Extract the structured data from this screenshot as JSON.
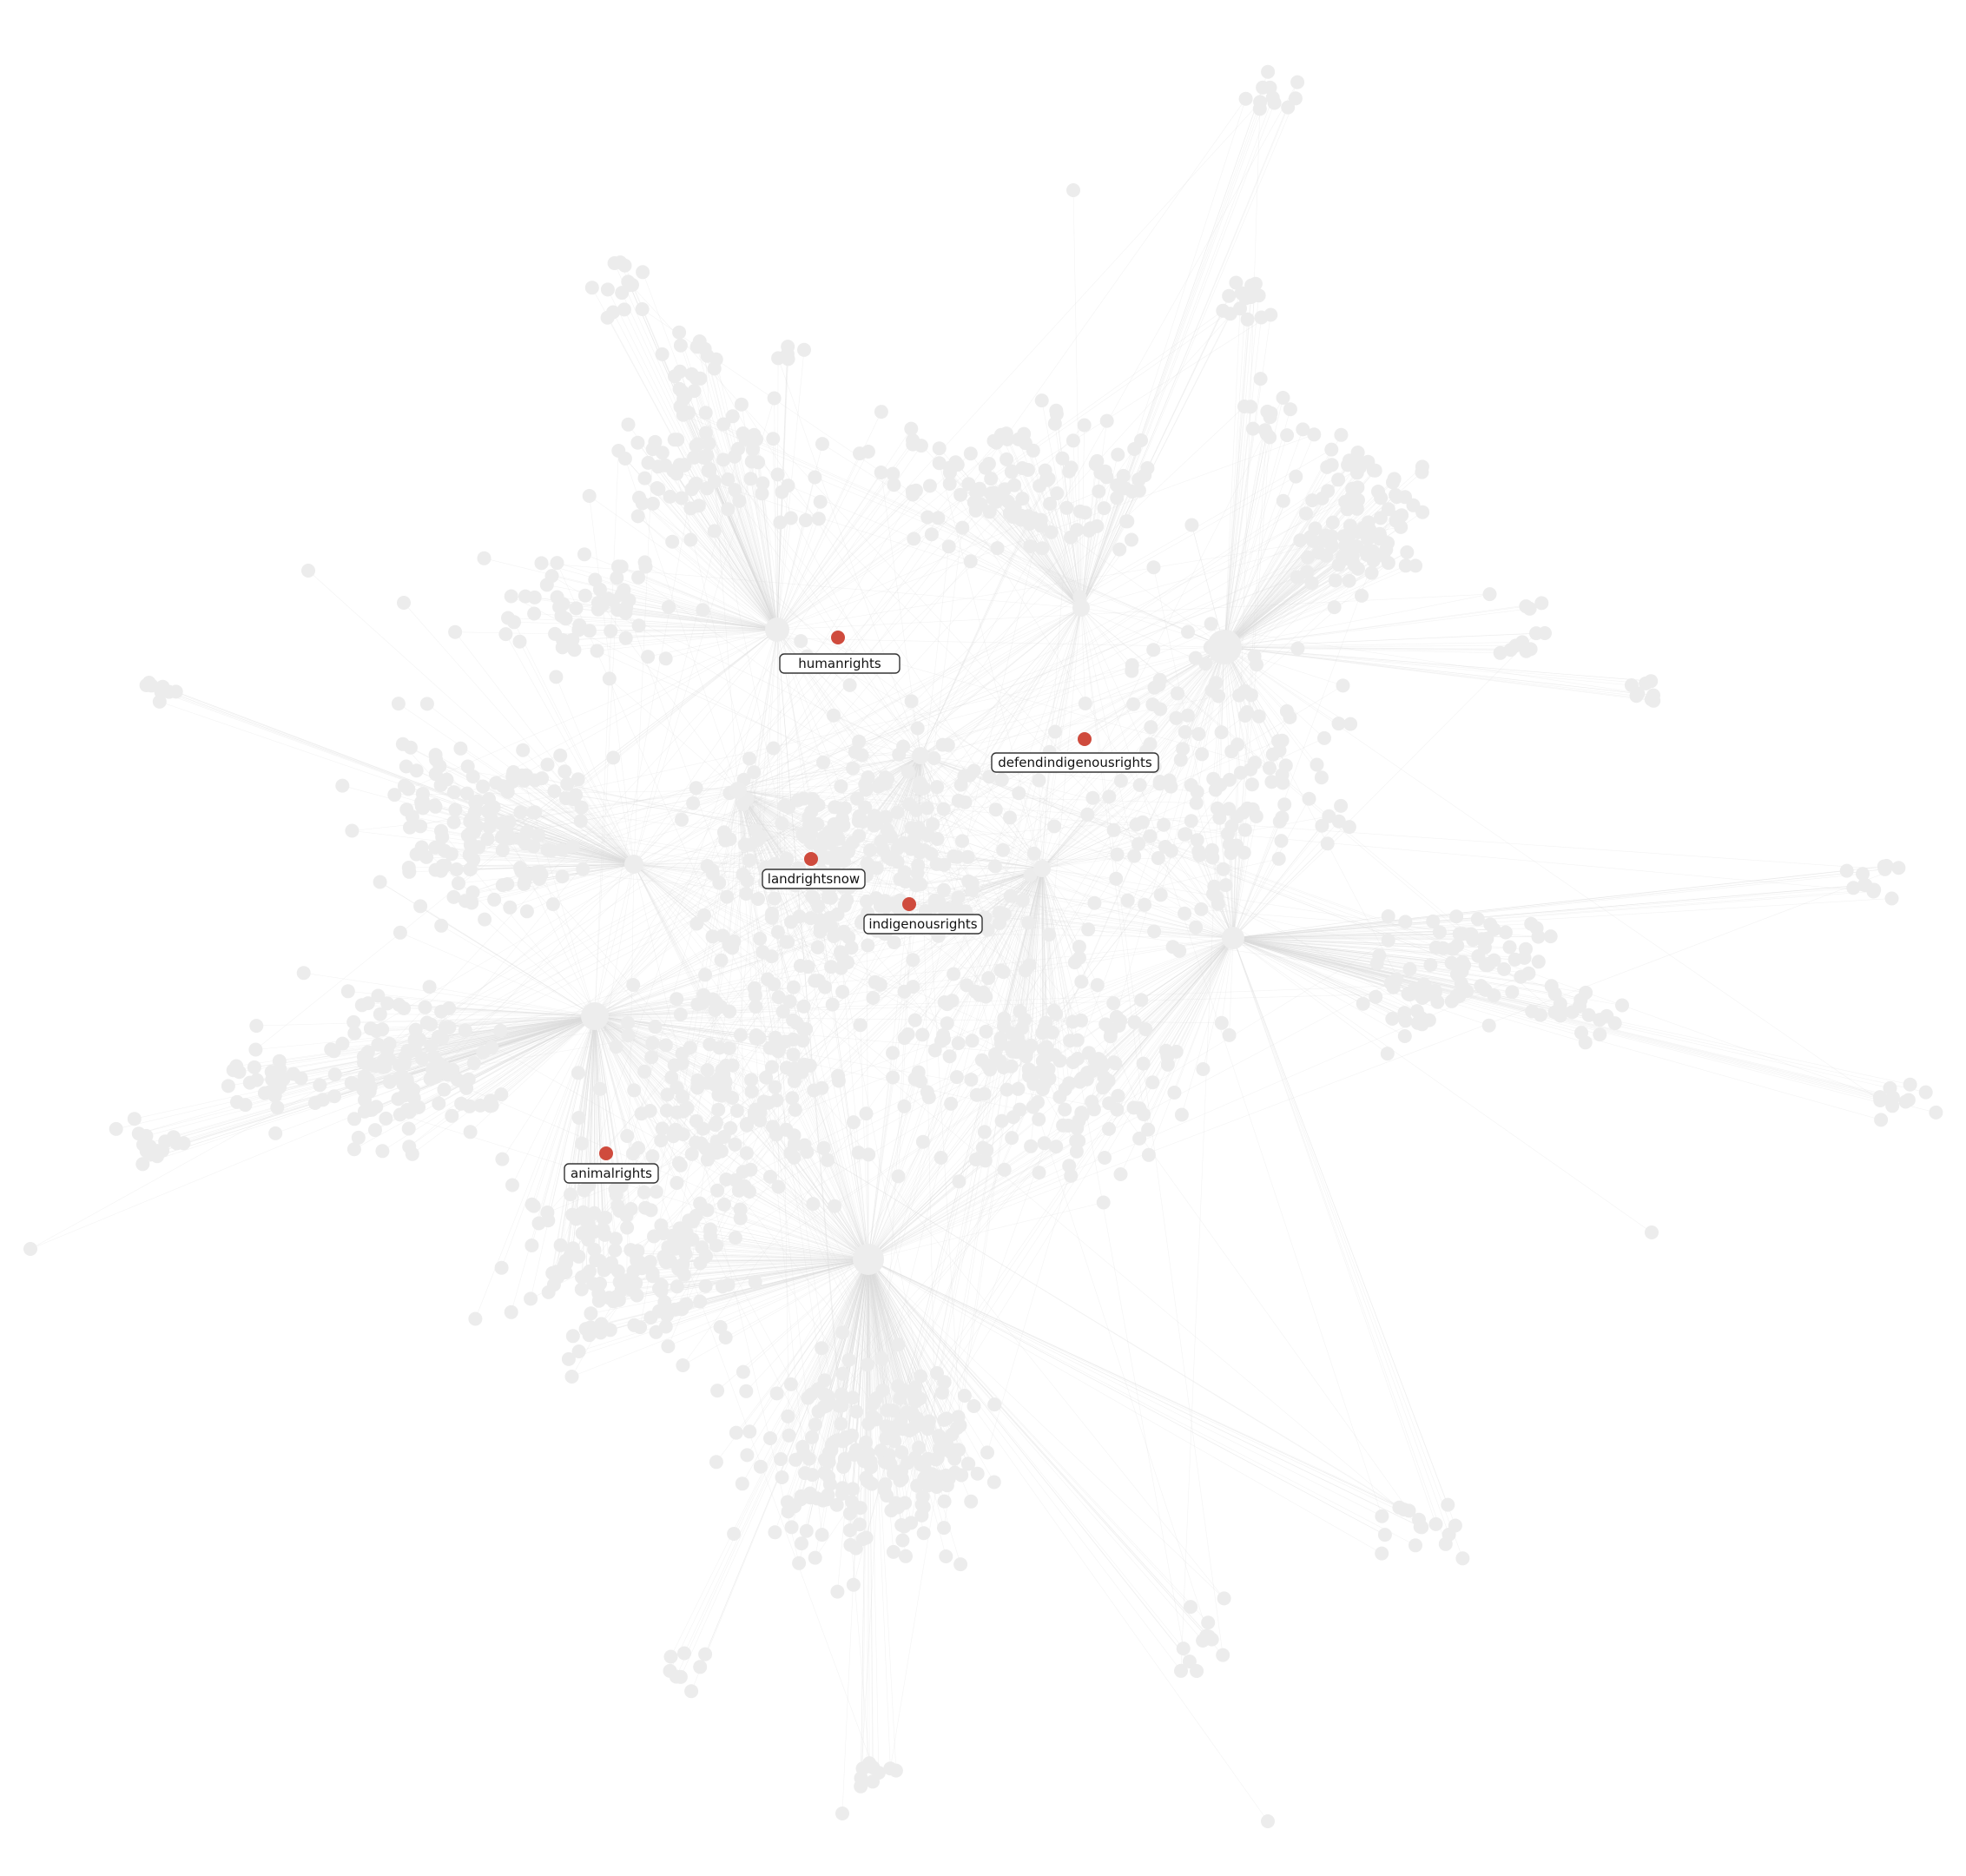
{
  "graph": {
    "highlight_color": "#cf4b3d",
    "node_color": "#ececec",
    "edge_color": "#dcdcdc",
    "highlighted_nodes": [
      {
        "id": "humanrights",
        "label": "humanrights"
      },
      {
        "id": "defendindigenousrights",
        "label": "defendindigenousrights"
      },
      {
        "id": "landrightsnow",
        "label": "landrightsnow"
      },
      {
        "id": "indigenousrights",
        "label": "indigenousrights"
      },
      {
        "id": "animalrights",
        "label": "animalrights"
      }
    ]
  }
}
